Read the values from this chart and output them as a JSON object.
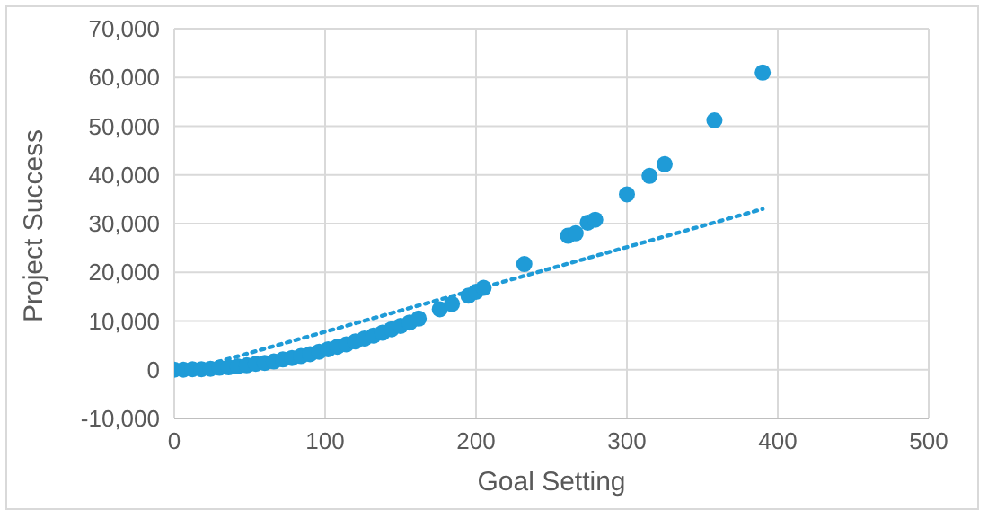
{
  "chart_data": {
    "type": "scatter",
    "xlabel": "Goal Setting",
    "ylabel": "Project Success",
    "xlim": [
      0,
      500
    ],
    "xticks": [
      0,
      100,
      200,
      300,
      400,
      500
    ],
    "ylim": [
      -10000,
      70000
    ],
    "yticks": [
      {
        "value": -10000,
        "label": "-10,000"
      },
      0,
      {
        "value": 10000,
        "label": "10,000"
      },
      {
        "value": 20000,
        "label": "20,000"
      },
      {
        "value": 30000,
        "label": "30,000"
      },
      {
        "value": 40000,
        "label": "40,000"
      },
      {
        "value": 50000,
        "label": "50,000"
      },
      {
        "value": 60000,
        "label": "60,000"
      },
      {
        "value": 70000,
        "label": "70,000"
      }
    ],
    "grid": true,
    "legend": false,
    "series": [
      {
        "color": "#1f9bd7",
        "marker": "circle",
        "x": [
          0,
          6,
          12,
          18,
          24,
          30,
          36,
          42,
          48,
          54,
          60,
          66,
          72,
          78,
          84,
          90,
          96,
          102,
          108,
          114,
          120,
          126,
          132,
          138,
          144,
          150,
          156,
          162,
          176,
          184,
          195,
          200,
          205,
          232,
          261,
          266,
          274,
          279,
          300,
          315,
          325,
          358,
          390
        ],
        "values": [
          0,
          0,
          100,
          100,
          200,
          400,
          500,
          700,
          900,
          1200,
          1400,
          1700,
          2100,
          2400,
          2800,
          3200,
          3700,
          4200,
          4700,
          5200,
          5800,
          6400,
          7000,
          7600,
          8300,
          9000,
          9700,
          10500,
          12400,
          13500,
          15200,
          16000,
          16800,
          21700,
          27500,
          28000,
          30200,
          30800,
          36000,
          39800,
          42200,
          51200,
          61000
        ]
      },
      {
        "type": "line",
        "color": "#1f9bd7",
        "line_style": "dotted",
        "marker": "none",
        "x": [
          0,
          390
        ],
        "values": [
          -900,
          33000
        ]
      }
    ]
  }
}
